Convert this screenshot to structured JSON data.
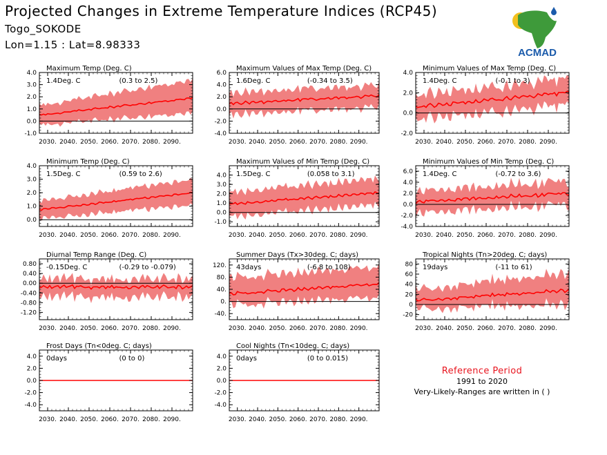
{
  "header": {
    "title": "Projected Changes in Extreme Temperature Indices (RCP45)",
    "station": "Togo_SOKODE",
    "coords": "Lon=1.15 : Lat=8.98333"
  },
  "logo": {
    "text": "ACMAD"
  },
  "reference": {
    "title": "Reference Period",
    "years": "1991 to 2020",
    "note": "Very-Likely-Ranges are written in ( )"
  },
  "colors": {
    "band": "#f08080",
    "line": "#ff0000",
    "zero": "#000000",
    "logo_text": "#1b5bab",
    "logo_africa": "#3e9a3a",
    "logo_sun": "#f2c01e"
  },
  "chart_data": [
    {
      "type": "area",
      "title": "Maximum Temp (Deg. C)",
      "value_label": "1.4Deg. C",
      "range_label": "(0.3 to 2.5)",
      "x_start": 2026,
      "x_end": 2100,
      "ylim": [
        -1.0,
        4.0
      ],
      "yticks": [
        "-1.0",
        "0.0",
        "1.0",
        "2.0",
        "3.0",
        "4.0"
      ],
      "mean": [
        0.5,
        1.9
      ],
      "band_lower": [
        -0.3,
        0.7
      ],
      "band_upper": [
        1.3,
        3.4
      ],
      "noise": 0.18,
      "xticks": [
        "2030.",
        "2040.",
        "2050.",
        "2060.",
        "2070.",
        "2080.",
        "2090."
      ]
    },
    {
      "type": "area",
      "title": "Maximum Values of Max Temp (Deg. C)",
      "value_label": "1.6Deg. C",
      "range_label": "(-0.34 to 3.5)",
      "x_start": 2026,
      "x_end": 2100,
      "ylim": [
        -4.0,
        6.0
      ],
      "yticks": [
        "-4.0",
        "-2.0",
        "0.0",
        "2.0",
        "4.0",
        "6.0"
      ],
      "mean": [
        0.9,
        2.2
      ],
      "band_lower": [
        -0.9,
        0.4
      ],
      "band_upper": [
        2.7,
        4.0
      ],
      "noise": 0.6,
      "xticks": [
        "2030.",
        "2040.",
        "2050.",
        "2060.",
        "2070.",
        "2080.",
        "2090."
      ]
    },
    {
      "type": "area",
      "title": "Minimum Values of Max Temp (Deg. C)",
      "value_label": "1.4Deg. C",
      "range_label": "(-0.1 to 3)",
      "x_start": 2026,
      "x_end": 2100,
      "ylim": [
        -2.0,
        4.0
      ],
      "yticks": [
        "-2.0",
        "0.0",
        "2.0",
        "4.0"
      ],
      "mean": [
        0.6,
        2.0
      ],
      "band_lower": [
        -0.6,
        0.7
      ],
      "band_upper": [
        1.8,
        3.3
      ],
      "noise": 0.45,
      "xticks": [
        "2030.",
        "2040.",
        "2050.",
        "2060.",
        "2070.",
        "2080.",
        "2090."
      ]
    },
    {
      "type": "area",
      "title": "Minimum Temp (Deg. C)",
      "value_label": "1.5Deg. C",
      "range_label": "(0.59 to 2.6)",
      "x_start": 2026,
      "x_end": 2100,
      "ylim": [
        -0.5,
        4.0
      ],
      "yticks": [
        "0.0",
        "1.0",
        "2.0",
        "3.0",
        "4.0"
      ],
      "mean": [
        0.75,
        2.0
      ],
      "band_lower": [
        0.1,
        1.1
      ],
      "band_upper": [
        1.4,
        3.0
      ],
      "noise": 0.15,
      "xticks": [
        "2030.",
        "2040.",
        "2050.",
        "2060.",
        "2070.",
        "2080.",
        "2090."
      ]
    },
    {
      "type": "area",
      "title": "Maximum Values of Min Temp (Deg. C)",
      "value_label": "1.5Deg. C",
      "range_label": "(0.058 to 3.1)",
      "x_start": 2026,
      "x_end": 2100,
      "ylim": [
        -1.5,
        5.0
      ],
      "yticks": [
        "-1.0",
        "0.0",
        "1.0",
        "2.0",
        "3.0",
        "4.0"
      ],
      "mean": [
        0.9,
        2.1
      ],
      "band_lower": [
        -0.4,
        0.8
      ],
      "band_upper": [
        2.2,
        3.6
      ],
      "noise": 0.3,
      "xticks": [
        "2030.",
        "2040.",
        "2050.",
        "2060.",
        "2070.",
        "2080.",
        "2090."
      ]
    },
    {
      "type": "area",
      "title": "Minimum Values of Min Temp (Deg. C)",
      "value_label": "1.4Deg. C",
      "range_label": "(-0.72 to 3.6)",
      "x_start": 2026,
      "x_end": 2100,
      "ylim": [
        -4.0,
        7.0
      ],
      "yticks": [
        "-4.0",
        "-2.0",
        "0.0",
        "2.0",
        "4.0",
        "6.0"
      ],
      "mean": [
        0.5,
        2.0
      ],
      "band_lower": [
        -1.5,
        0.0
      ],
      "band_upper": [
        2.5,
        4.2
      ],
      "noise": 0.8,
      "xticks": [
        "2030.",
        "2040.",
        "2050.",
        "2060.",
        "2070.",
        "2080.",
        "2090."
      ]
    },
    {
      "type": "area",
      "title": "Diurnal Temp Range (Deg. C)",
      "value_label": "-0.15Deg. C",
      "range_label": "(-0.29 to -0.079)",
      "x_start": 2026,
      "x_end": 2100,
      "ylim": [
        -1.5,
        1.0
      ],
      "yticks": [
        "-1.20",
        "-0.80",
        "-0.40",
        "0.00",
        "0.40",
        "0.80"
      ],
      "mean": [
        -0.15,
        -0.15
      ],
      "band_lower": [
        -0.55,
        -0.55
      ],
      "band_upper": [
        0.2,
        0.2
      ],
      "noise": 0.18,
      "xticks": [
        "2030.",
        "2040.",
        "2050.",
        "2060.",
        "2070.",
        "2080.",
        "2090."
      ]
    },
    {
      "type": "area",
      "title": "Summer Days (Tx>30deg. C; days)",
      "value_label": "43days",
      "range_label": "(-6.8 to 108)",
      "x_start": 2026,
      "x_end": 2100,
      "ylim": [
        -60,
        140
      ],
      "yticks": [
        "-40.",
        "0.",
        "40.",
        "80.",
        "120."
      ],
      "mean": [
        25,
        58
      ],
      "band_lower": [
        -10,
        15
      ],
      "band_upper": [
        80,
        115
      ],
      "noise": 12,
      "xticks": [
        "2030.",
        "2040.",
        "2050.",
        "2060.",
        "2070.",
        "2080.",
        "2090."
      ]
    },
    {
      "type": "area",
      "title": "Tropical Nights (Tn>20deg. C; days)",
      "value_label": "19days",
      "range_label": "(-11 to 61)",
      "x_start": 2026,
      "x_end": 2100,
      "ylim": [
        -30,
        90
      ],
      "yticks": [
        "-20",
        "0",
        "20",
        "40",
        "60",
        "80"
      ],
      "mean": [
        8,
        28
      ],
      "band_lower": [
        -8,
        0
      ],
      "band_upper": [
        30,
        62
      ],
      "noise": 8,
      "xticks": [
        "2030.",
        "2040.",
        "2050.",
        "2060.",
        "2070.",
        "2080.",
        "2090."
      ]
    },
    {
      "type": "area",
      "title": "Frost Days (Tn<0deg. C; days)",
      "value_label": "0days",
      "range_label": "(0 to 0)",
      "x_start": 2026,
      "x_end": 2100,
      "ylim": [
        -5.0,
        5.0
      ],
      "yticks": [
        "-4.0",
        "-2.0",
        "0.0",
        "2.0",
        "4.0"
      ],
      "mean": [
        0,
        0
      ],
      "band_lower": [
        0,
        0
      ],
      "band_upper": [
        0,
        0
      ],
      "noise": 0,
      "xticks": [
        "2030.",
        "2040.",
        "2050.",
        "2060.",
        "2070.",
        "2080.",
        "2090."
      ]
    },
    {
      "type": "area",
      "title": "Cool Nights (Tn<10deg. C; days)",
      "value_label": "0days",
      "range_label": "(0 to 0.015)",
      "x_start": 2026,
      "x_end": 2100,
      "ylim": [
        -5.0,
        5.0
      ],
      "yticks": [
        "-4.0",
        "-2.0",
        "0.0",
        "2.0",
        "4.0"
      ],
      "mean": [
        0,
        0
      ],
      "band_lower": [
        0,
        0
      ],
      "band_upper": [
        0,
        0.05
      ],
      "noise": 0,
      "xticks": [
        "2030.",
        "2040.",
        "2050.",
        "2060.",
        "2070.",
        "2080.",
        "2090."
      ]
    }
  ]
}
